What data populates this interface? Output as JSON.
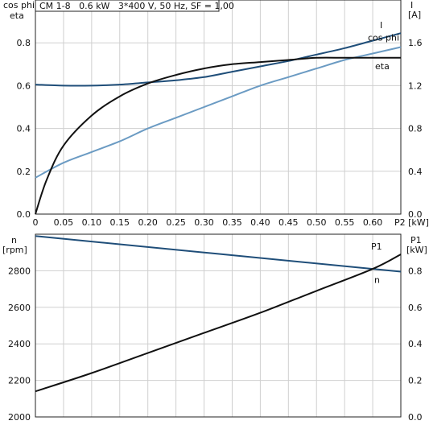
{
  "chart_data": [
    {
      "type": "line",
      "title": "CM 1-8   0.6 kW   3*400 V, 50 Hz, SF = 1,00",
      "xlabel": "P2 [kW]",
      "ylabel_left": "cos phi\neta",
      "ylabel_right": "I\n[A]",
      "xlim": [
        0,
        0.65
      ],
      "ylim_left": [
        0,
        1.0
      ],
      "ylim_right": [
        0,
        2.0
      ],
      "x_ticks": [
        "0",
        "0.05",
        "0.10",
        "0.15",
        "0.20",
        "0.25",
        "0.30",
        "0.35",
        "0.40",
        "0.45",
        "0.50",
        "0.55",
        "0.60",
        "P2 [kW]"
      ],
      "y_ticks_left": [
        "0.0",
        "0.2",
        "0.4",
        "0.6",
        "0.8"
      ],
      "y_ticks_right": [
        "0.0",
        "0.4",
        "0.8",
        "1.2",
        "1.6"
      ],
      "grid": true,
      "series": [
        {
          "name": "I",
          "axis": "right",
          "color": "#1f4e79",
          "x": [
            0,
            0.05,
            0.1,
            0.15,
            0.2,
            0.25,
            0.3,
            0.35,
            0.4,
            0.45,
            0.5,
            0.55,
            0.6,
            0.65
          ],
          "y": [
            1.21,
            1.2,
            1.2,
            1.21,
            1.23,
            1.25,
            1.28,
            1.33,
            1.38,
            1.43,
            1.49,
            1.55,
            1.62,
            1.69
          ]
        },
        {
          "name": "cos phi",
          "axis": "left",
          "color": "#6b9bc3",
          "x": [
            0,
            0.05,
            0.1,
            0.15,
            0.2,
            0.25,
            0.3,
            0.35,
            0.4,
            0.45,
            0.5,
            0.55,
            0.6,
            0.65
          ],
          "y": [
            0.17,
            0.24,
            0.29,
            0.34,
            0.4,
            0.45,
            0.5,
            0.55,
            0.6,
            0.64,
            0.68,
            0.72,
            0.75,
            0.78
          ]
        },
        {
          "name": "eta",
          "axis": "left",
          "color": "#111111",
          "x": [
            0,
            0.02,
            0.05,
            0.1,
            0.15,
            0.2,
            0.25,
            0.3,
            0.35,
            0.4,
            0.45,
            0.5,
            0.55,
            0.6,
            0.65
          ],
          "y": [
            0.0,
            0.16,
            0.32,
            0.46,
            0.55,
            0.61,
            0.65,
            0.68,
            0.7,
            0.71,
            0.72,
            0.73,
            0.73,
            0.73,
            0.73
          ]
        }
      ],
      "series_labels": [
        "I",
        "cos phi",
        "eta"
      ]
    },
    {
      "type": "line",
      "xlabel": "",
      "ylabel_left": "n\n[rpm]",
      "ylabel_right": "P1\n[kW]",
      "xlim": [
        0,
        0.65
      ],
      "ylim_left": [
        2000,
        3000
      ],
      "ylim_right": [
        0,
        1.0
      ],
      "y_ticks_left": [
        "2000",
        "2200",
        "2400",
        "2600",
        "2800"
      ],
      "y_ticks_right": [
        "0.0",
        "0.2",
        "0.4",
        "0.6",
        "0.8"
      ],
      "grid": true,
      "series": [
        {
          "name": "n",
          "axis": "left",
          "color": "#1f4e79",
          "x": [
            0,
            0.65
          ],
          "y": [
            2990,
            2795
          ]
        },
        {
          "name": "P1",
          "axis": "right",
          "color": "#111111",
          "x": [
            0,
            0.1,
            0.2,
            0.3,
            0.4,
            0.5,
            0.6,
            0.65
          ],
          "y": [
            0.14,
            0.24,
            0.35,
            0.46,
            0.57,
            0.69,
            0.81,
            0.89
          ]
        }
      ],
      "series_labels": [
        "P1",
        "n"
      ]
    }
  ]
}
